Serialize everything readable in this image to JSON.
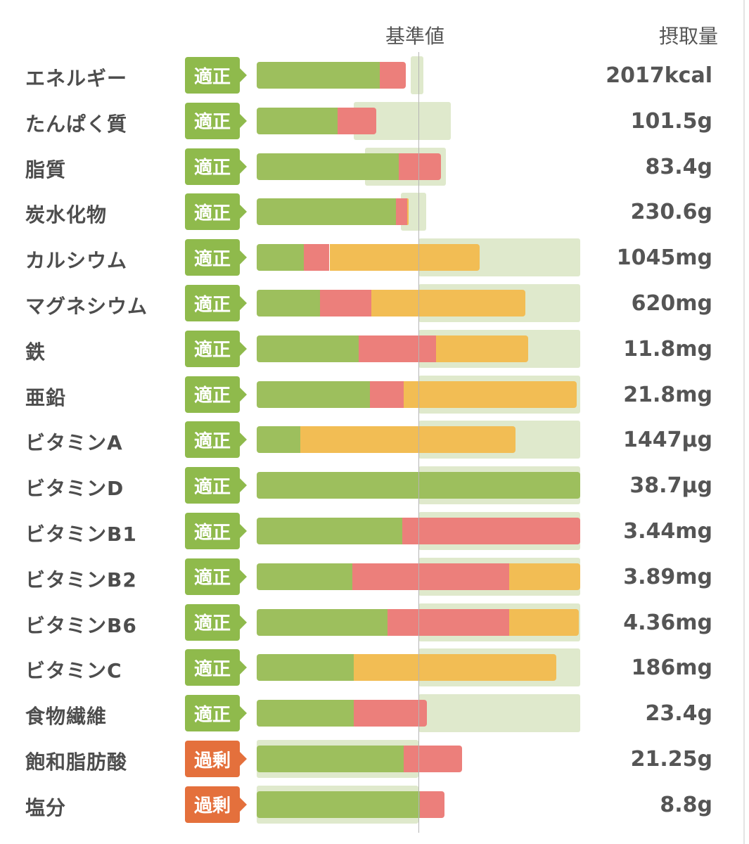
{
  "header": {
    "reference_label": "基準値",
    "intake_label": "摂取量"
  },
  "colors": {
    "green": "#9dbf5d",
    "red": "#ec7f7b",
    "orange": "#f2bd54",
    "track": "#dfe9cc",
    "badge_ok": "#8fba4c",
    "badge_over": "#e4703c"
  },
  "chart_data": {
    "type": "bar",
    "stacked": true,
    "reference_percent": 100,
    "series_colors": [
      "green",
      "red",
      "orange"
    ],
    "rows": [
      {
        "label": "エネルギー",
        "status": "適正",
        "status_type": "ok",
        "value_text": "2017kcal",
        "track": [
          95,
          103
        ],
        "segments": [
          76,
          16,
          0
        ]
      },
      {
        "label": "たんぱく質",
        "status": "適正",
        "status_type": "ok",
        "value_text": "101.5g",
        "track": [
          60,
          120
        ],
        "segments": [
          50,
          24,
          0
        ]
      },
      {
        "label": "脂質",
        "status": "適正",
        "status_type": "ok",
        "value_text": "83.4g",
        "track": [
          67,
          117
        ],
        "segments": [
          88,
          26,
          0
        ]
      },
      {
        "label": "炭水化物",
        "status": "適正",
        "status_type": "ok",
        "value_text": "230.6g",
        "track": [
          89,
          105
        ],
        "segments": [
          86,
          7,
          1
        ]
      },
      {
        "label": "カルシウム",
        "status": "適正",
        "status_type": "ok",
        "value_text": "1045mg",
        "track": [
          100,
          200
        ],
        "segments": [
          29,
          16,
          93
        ]
      },
      {
        "label": "マグネシウム",
        "status": "適正",
        "status_type": "ok",
        "value_text": "620mg",
        "track": [
          100,
          200
        ],
        "segments": [
          39,
          32,
          95
        ]
      },
      {
        "label": "鉄",
        "status": "適正",
        "status_type": "ok",
        "value_text": "11.8mg",
        "track": [
          100,
          200
        ],
        "segments": [
          63,
          48,
          57
        ]
      },
      {
        "label": "亜鉛",
        "status": "適正",
        "status_type": "ok",
        "value_text": "21.8mg",
        "track": [
          100,
          200
        ],
        "segments": [
          70,
          21,
          107
        ]
      },
      {
        "label": "ビタミンA",
        "status": "適正",
        "status_type": "ok",
        "value_text": "1447μg",
        "track": [
          100,
          200
        ],
        "segments": [
          27,
          0,
          133
        ]
      },
      {
        "label": "ビタミンD",
        "status": "適正",
        "status_type": "ok",
        "value_text": "38.7μg",
        "track": [
          100,
          200
        ],
        "segments": [
          200,
          0,
          0
        ]
      },
      {
        "label": "ビタミンB1",
        "status": "適正",
        "status_type": "ok",
        "value_text": "3.44mg",
        "track": [
          100,
          200
        ],
        "segments": [
          90,
          110,
          0
        ]
      },
      {
        "label": "ビタミンB2",
        "status": "適正",
        "status_type": "ok",
        "value_text": "3.89mg",
        "track": [
          100,
          200
        ],
        "segments": [
          59,
          97,
          44
        ]
      },
      {
        "label": "ビタミンB6",
        "status": "適正",
        "status_type": "ok",
        "value_text": "4.36mg",
        "track": [
          100,
          200
        ],
        "segments": [
          81,
          75,
          43
        ]
      },
      {
        "label": "ビタミンC",
        "status": "適正",
        "status_type": "ok",
        "value_text": "186mg",
        "track": [
          100,
          200
        ],
        "segments": [
          60,
          0,
          125
        ]
      },
      {
        "label": "食物繊維",
        "status": "適正",
        "status_type": "ok",
        "value_text": "23.4g",
        "track": [
          100,
          200
        ],
        "segments": [
          60,
          45,
          0
        ]
      },
      {
        "label": "飽和脂肪酸",
        "status": "過剰",
        "status_type": "over",
        "value_text": "21.25g",
        "track": [
          0,
          100
        ],
        "segments": [
          91,
          36,
          0
        ]
      },
      {
        "label": "塩分",
        "status": "過剰",
        "status_type": "over",
        "value_text": "8.8g",
        "track": [
          0,
          100
        ],
        "segments": [
          101,
          15,
          0
        ]
      }
    ]
  }
}
